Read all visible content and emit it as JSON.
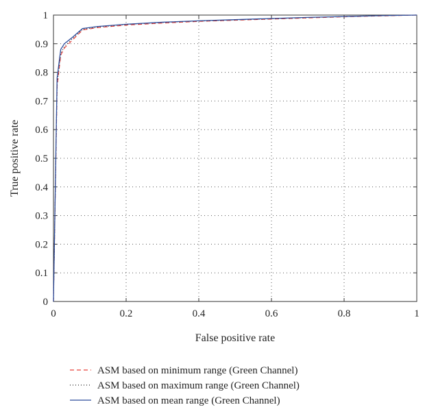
{
  "chart_data": {
    "type": "line",
    "title": "",
    "xlabel": "False positive rate",
    "ylabel": "True positive rate",
    "xlim": [
      0,
      1
    ],
    "ylim": [
      0,
      1
    ],
    "xticks": [
      0,
      0.2,
      0.4,
      0.6,
      0.8,
      1
    ],
    "yticks": [
      0,
      0.1,
      0.2,
      0.3,
      0.4,
      0.5,
      0.6,
      0.7,
      0.8,
      0.9,
      1
    ],
    "xtick_labels": [
      "0",
      "0.2",
      "0.4",
      "0.6",
      "0.8",
      "1"
    ],
    "ytick_labels": [
      "0",
      "0.1",
      "0.2",
      "0.3",
      "0.4",
      "0.5",
      "0.6",
      "0.7",
      "0.8",
      "0.9",
      "1"
    ],
    "grid": true,
    "legend_position": "bottom",
    "series": [
      {
        "name": "ASM based on minimum range (Green Channel)",
        "color": "#e8403a",
        "dash": "dashed",
        "points": [
          [
            0,
            0
          ],
          [
            0.01,
            0.75
          ],
          [
            0.02,
            0.86
          ],
          [
            0.03,
            0.885
          ],
          [
            0.05,
            0.91
          ],
          [
            0.08,
            0.948
          ],
          [
            0.12,
            0.956
          ],
          [
            0.2,
            0.965
          ],
          [
            0.3,
            0.972
          ],
          [
            0.4,
            0.978
          ],
          [
            0.5,
            0.982
          ],
          [
            0.6,
            0.986
          ],
          [
            0.7,
            0.99
          ],
          [
            0.8,
            0.994
          ],
          [
            0.9,
            0.997
          ],
          [
            1,
            1
          ]
        ]
      },
      {
        "name": "ASM based on maximum range (Green Channel)",
        "color": "#222222",
        "dash": "dotted",
        "points": [
          [
            0,
            0
          ],
          [
            0.01,
            0.76
          ],
          [
            0.02,
            0.865
          ],
          [
            0.03,
            0.89
          ],
          [
            0.05,
            0.915
          ],
          [
            0.08,
            0.95
          ],
          [
            0.12,
            0.958
          ],
          [
            0.2,
            0.967
          ],
          [
            0.3,
            0.974
          ],
          [
            0.4,
            0.979
          ],
          [
            0.5,
            0.983
          ],
          [
            0.6,
            0.987
          ],
          [
            0.7,
            0.991
          ],
          [
            0.8,
            0.995
          ],
          [
            0.9,
            0.998
          ],
          [
            1,
            1
          ]
        ]
      },
      {
        "name": "ASM based on mean range (Green Channel)",
        "color": "#2b4c9b",
        "dash": "solid",
        "points": [
          [
            0,
            0
          ],
          [
            0.01,
            0.78
          ],
          [
            0.02,
            0.88
          ],
          [
            0.03,
            0.9
          ],
          [
            0.05,
            0.92
          ],
          [
            0.08,
            0.953
          ],
          [
            0.12,
            0.96
          ],
          [
            0.2,
            0.968
          ],
          [
            0.3,
            0.975
          ],
          [
            0.4,
            0.98
          ],
          [
            0.5,
            0.984
          ],
          [
            0.6,
            0.988
          ],
          [
            0.7,
            0.992
          ],
          [
            0.8,
            0.995
          ],
          [
            0.9,
            0.998
          ],
          [
            1,
            1
          ]
        ]
      }
    ]
  }
}
